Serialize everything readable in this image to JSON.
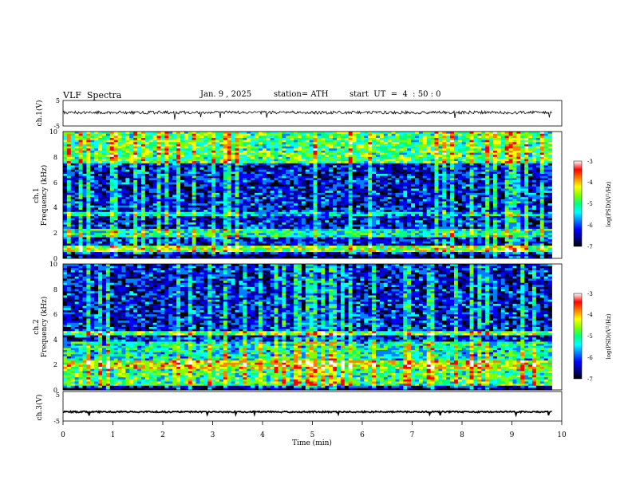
{
  "header": {
    "title": "VLF  Spectra",
    "date": "Jan. 9 , 2025",
    "station": "station= ATH",
    "start": "start  UT  =  4  : 50 : 0"
  },
  "colors": {
    "spectrogram_scale": [
      "#000000",
      "#00008c",
      "#0000ff",
      "#0080ff",
      "#00ffff",
      "#00ff80",
      "#80ff00",
      "#ffff00",
      "#ff8000",
      "#ff0000",
      "#ffffff"
    ],
    "waveform_line": "#000000"
  },
  "chart_data": [
    {
      "type": "line",
      "name": "ch1-waveform",
      "ylabel": "ch.1(V)",
      "yticks": [
        "5",
        "-5"
      ],
      "ylim": [
        -5,
        5
      ],
      "xlim": [
        0,
        10
      ],
      "data_extent_min": 9.8,
      "approx_level_v": 0.3,
      "approx_noise_v": 0.6
    },
    {
      "type": "heatmap",
      "name": "ch1-spectrogram",
      "ylabel_top": "ch.1",
      "ylabel": "Frequency  (kHz)",
      "yticks": [
        "0",
        "2",
        "4",
        "6",
        "8",
        "10"
      ],
      "ylim": [
        0,
        10
      ],
      "xlim": [
        0,
        10
      ],
      "colorbar": {
        "label": "log(PSD)(V²/Hz)",
        "ticks": [
          "-3",
          "-4",
          "-5",
          "-6",
          "-7"
        ],
        "range": [
          -7,
          -3
        ]
      },
      "background_level": -6.3,
      "features": [
        {
          "kind": "band",
          "freq_khz": [
            1.6,
            2.3
          ],
          "level": -5.2
        },
        {
          "kind": "band",
          "freq_khz": [
            0.5,
            1.0
          ],
          "level": -4.6
        },
        {
          "kind": "band",
          "freq_khz": [
            0.0,
            0.4
          ],
          "level": -7.0
        },
        {
          "kind": "band",
          "freq_khz": [
            7.5,
            10.0
          ],
          "level": -4.9
        },
        {
          "kind": "band",
          "freq_khz": [
            3.4,
            3.7
          ],
          "level": -5.6
        }
      ]
    },
    {
      "type": "heatmap",
      "name": "ch2-spectrogram",
      "ylabel_top": "ch.2",
      "ylabel": "Frequency  (kHz)",
      "yticks": [
        "0",
        "2",
        "4",
        "6",
        "8",
        "10"
      ],
      "ylim": [
        0,
        10
      ],
      "xlim": [
        0,
        10
      ],
      "colorbar": {
        "label": "log(PSD)(V²/Hz)",
        "ticks": [
          "-3",
          "-4",
          "-5",
          "-6",
          "-7"
        ],
        "range": [
          -7,
          -3
        ]
      },
      "background_level": -6.3,
      "features": [
        {
          "kind": "band",
          "freq_khz": [
            1.6,
            2.4
          ],
          "level": -4.3
        },
        {
          "kind": "band",
          "freq_khz": [
            0.3,
            1.6
          ],
          "level": -5.0
        },
        {
          "kind": "band",
          "freq_khz": [
            2.4,
            3.8
          ],
          "level": -5.3
        },
        {
          "kind": "band",
          "freq_khz": [
            4.4,
            4.6
          ],
          "level": -4.8
        },
        {
          "kind": "band",
          "freq_khz": [
            0.0,
            0.2
          ],
          "level": -7.0
        }
      ]
    },
    {
      "type": "line",
      "name": "ch3-waveform",
      "ylabel": "ch.3(V)",
      "yticks": [
        "5",
        "-5"
      ],
      "ylim": [
        -5,
        5
      ],
      "xlim": [
        0,
        10
      ],
      "xlabel": "Time  (min)",
      "xticks": [
        "0",
        "1",
        "2",
        "3",
        "4",
        "5",
        "6",
        "7",
        "8",
        "9",
        "10"
      ],
      "data_extent_min": 9.8,
      "approx_level_v": -1.9,
      "approx_noise_v": 0.25
    }
  ]
}
